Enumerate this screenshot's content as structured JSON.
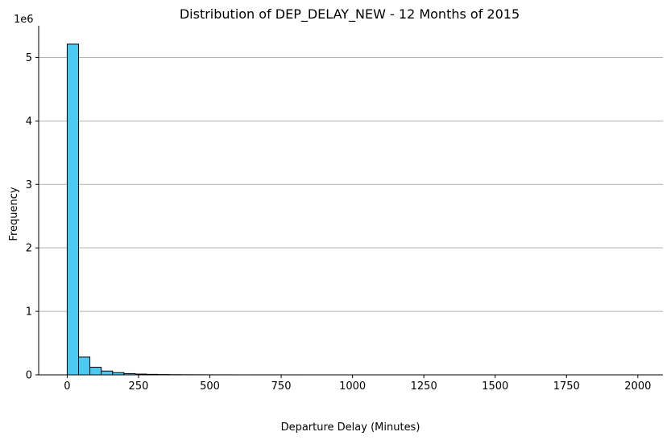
{
  "chart_data": {
    "type": "bar",
    "title": "Distribution of DEP_DELAY_NEW - 12 Months of 2015",
    "xlabel": "Departure Delay (Minutes)",
    "ylabel": "Frequency",
    "y_scale_label": "1e6",
    "xlim": [
      -100,
      2088
    ],
    "ylim": [
      0,
      5.5
    ],
    "x_ticks": [
      0,
      250,
      500,
      750,
      1000,
      1250,
      1500,
      1750,
      2000
    ],
    "y_ticks": [
      0,
      1,
      2,
      3,
      4,
      5
    ],
    "grid": "y-major",
    "bar_color": "#4cc9f0",
    "bar_edge_color": "#000000",
    "bin_width": 39.76,
    "bin_start": 0,
    "values": [
      5.21,
      0.28,
      0.12,
      0.06,
      0.035,
      0.02,
      0.012,
      0.008,
      0.005,
      0.003,
      0.002,
      0.0015,
      0.001,
      0.0008,
      0.0006,
      0.0005,
      0.0004,
      0.0003,
      0.0003,
      0.0002,
      0.0002,
      0.0001,
      0.0001,
      0.0001,
      0.0001,
      0.0001,
      0.0001,
      0.0001,
      0.0001,
      0.0001,
      0.0001,
      0.0001,
      0.0001,
      0.0001,
      0.0001,
      0.0001,
      0.0001,
      0.0001,
      0.0001,
      0.0001,
      0.0001,
      0.0001,
      0.0001,
      0.0001,
      0.0001,
      0.0001,
      0.0001,
      0.0001,
      0.0001,
      0.0001
    ]
  }
}
